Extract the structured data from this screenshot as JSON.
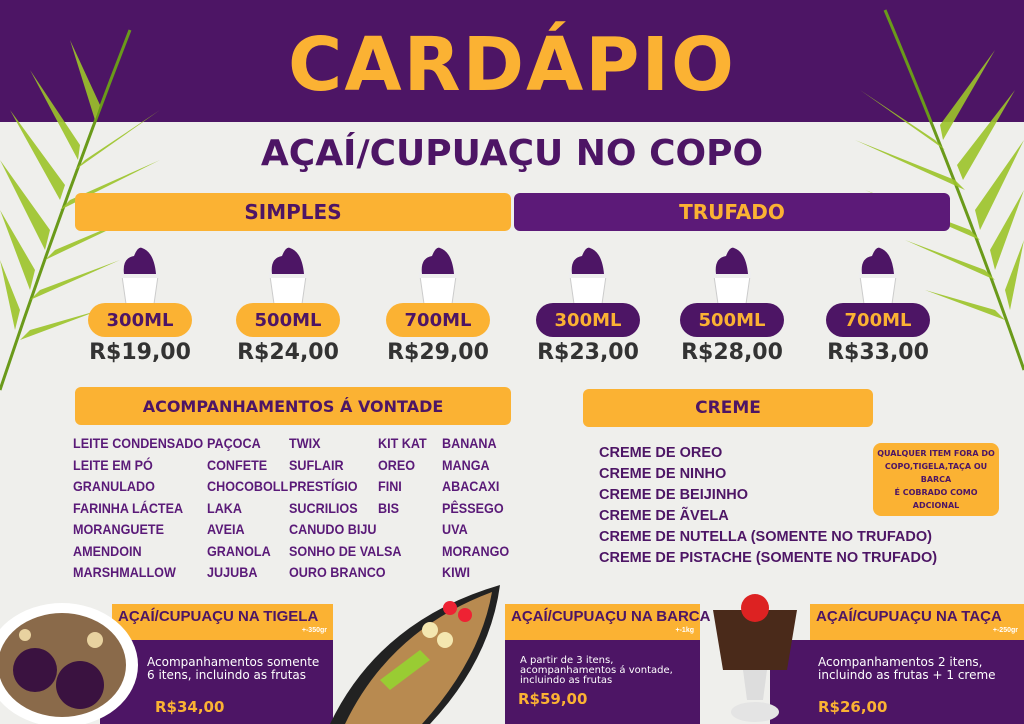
{
  "title": "CARDÁPIO",
  "subtitle": "AÇAÍ/CUPUAÇU NO COPO",
  "colors": {
    "purple": "#4d1565",
    "orange": "#fbb233",
    "background": "#efefec"
  },
  "simples": {
    "label": "SIMPLES",
    "sizes": [
      {
        "size": "300ML",
        "price": "R$19,00"
      },
      {
        "size": "500ML",
        "price": "R$24,00"
      },
      {
        "size": "700ML",
        "price": "R$29,00"
      }
    ]
  },
  "trufado": {
    "label": "TRUFADO",
    "sizes": [
      {
        "size": "300ML",
        "price": "R$23,00"
      },
      {
        "size": "500ML",
        "price": "R$28,00"
      },
      {
        "size": "700ML",
        "price": "R$33,00"
      }
    ]
  },
  "acompanhamentos": {
    "label": "ACOMPANHAMENTOS Á VONTADE",
    "columns": [
      [
        "LEITE CONDENSADO",
        "LEITE EM PÓ",
        "GRANULADO",
        "FARINHA LÁCTEA",
        "MORANGUETE",
        "AMENDOIN",
        "MARSHMALLOW"
      ],
      [
        "PAÇOCA",
        "CONFETE",
        "CHOCOBOLL",
        "LAKA",
        "AVEIA",
        "GRANOLA",
        "JUJUBA"
      ],
      [
        "TWIX",
        "SUFLAIR",
        "PRESTÍGIO",
        "SUCRILIOS",
        "CANUDO BIJU",
        "SONHO DE VALSA",
        "OURO BRANCO"
      ],
      [
        "KIT KAT",
        "OREO",
        "FINI",
        "BIS"
      ],
      [
        "BANANA",
        "MANGA",
        "ABACAXI",
        "PÊSSEGO",
        "UVA",
        "MORANGO",
        "KIWI"
      ]
    ]
  },
  "creme": {
    "label": "CREME",
    "items": [
      "CREME DE OREO",
      "CREME DE NINHO",
      "CREME DE BEIJINHO",
      "CREME DE ÃVELA",
      "CREME DE NUTELLA (SOMENTE NO TRUFADO)",
      "CREME DE PISTACHE (SOMENTE NO TRUFADO)"
    ]
  },
  "note": [
    "QUALQUER ITEM FORA DO",
    "COPO,TIGELA,TAÇA OU BARCA",
    "É COBRADO COMO ADCIONAL"
  ],
  "products": [
    {
      "name": "AÇAÍ/CUPUAÇU NA TIGELA",
      "weight": "+-350gr",
      "desc": [
        "Acompanhamentos somente",
        "6 itens, incluindo as frutas"
      ],
      "price": "R$34,00"
    },
    {
      "name": "AÇAÍ/CUPUAÇU NA BARCA",
      "weight": "+-1kg",
      "desc": [
        "A partir de 3 itens,",
        "acompanhamentos á vontade,",
        "incluindo as frutas"
      ],
      "price": "R$59,00"
    },
    {
      "name": "AÇAÍ/CUPUAÇU NA TAÇA",
      "weight": "+-250gr",
      "desc": [
        "Acompanhamentos 2 itens,",
        "incluindo as frutas + 1 creme"
      ],
      "price": "R$26,00"
    }
  ]
}
